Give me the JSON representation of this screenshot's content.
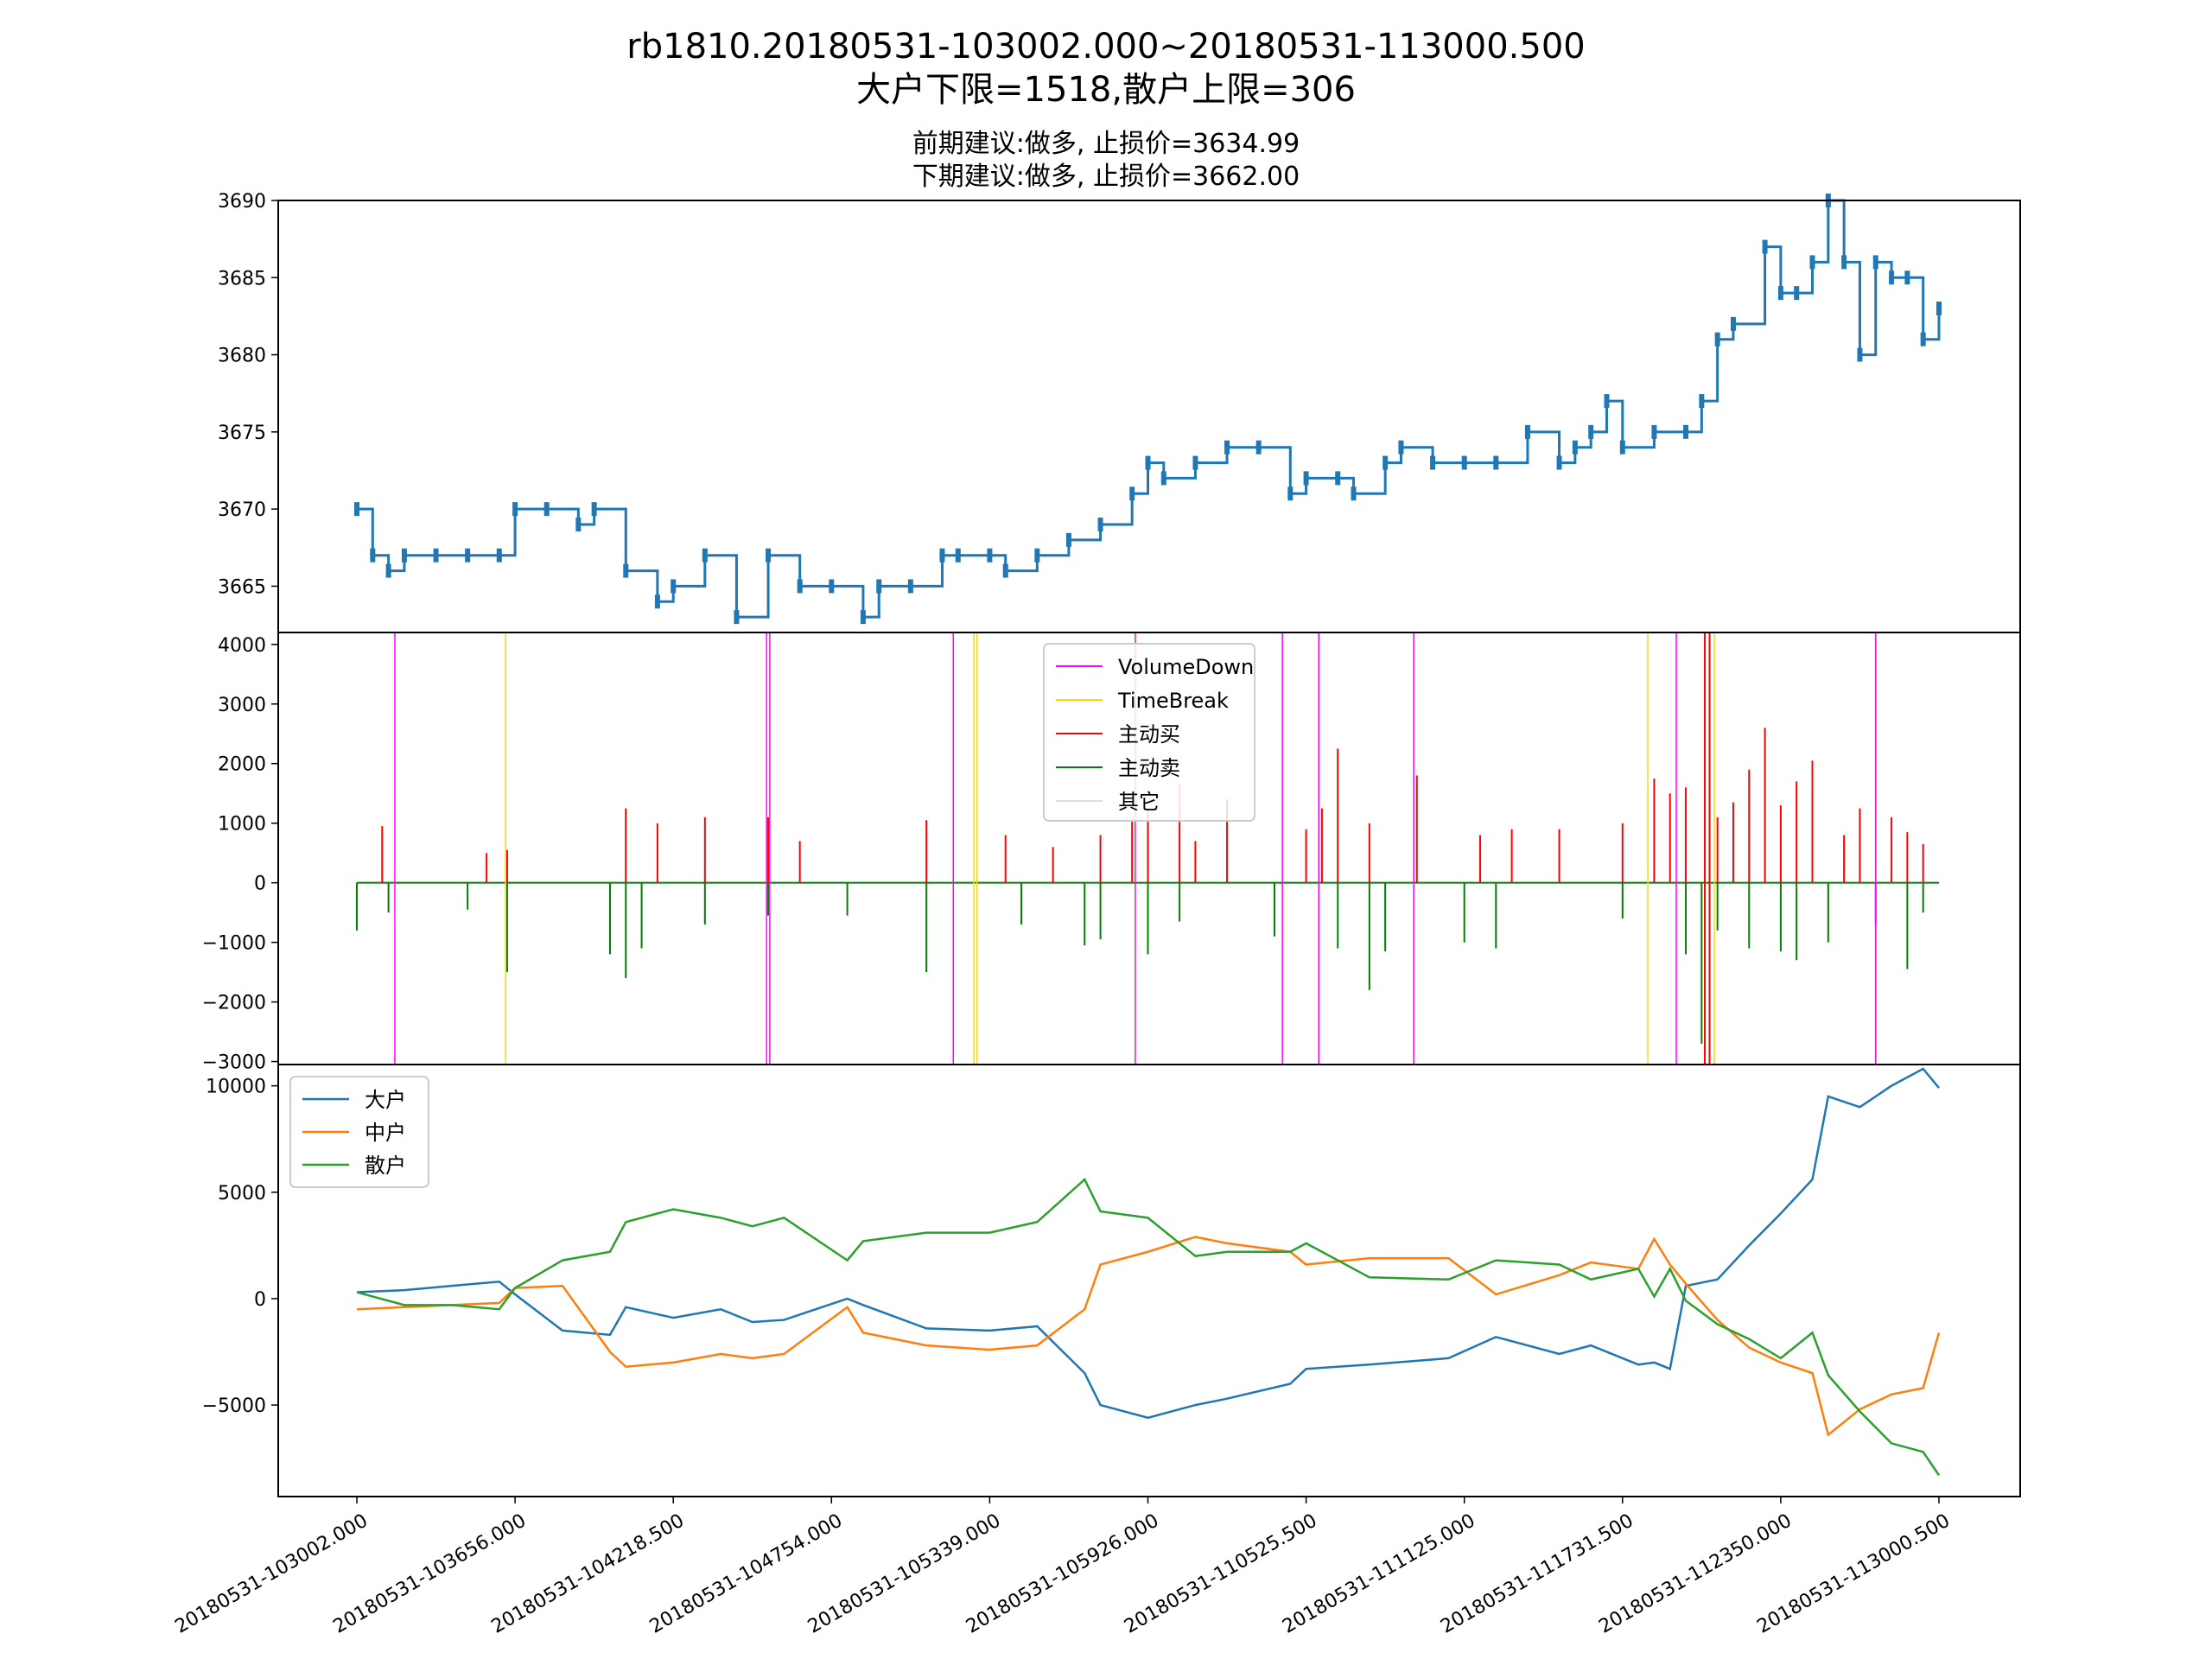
{
  "titles": {
    "main": "rb1810.20180531-103002.000~20180531-113000.500",
    "limits": "大户下限=1518,散户上限=306",
    "prev_advice": "前期建议:做多, 止损价=3634.99",
    "next_advice": "下期建议:做多, 止损价=3662.00"
  },
  "chart_data": [
    {
      "type": "line",
      "panel": "price",
      "title": "",
      "xlabel": "",
      "ylabel": "",
      "ylim": [
        3662,
        3690
      ],
      "yticks": [
        "3665",
        "3670",
        "3675",
        "3680",
        "3685",
        "3690"
      ],
      "ytick_values": [
        3665,
        3670,
        3675,
        3680,
        3685,
        3690
      ],
      "color": "#1f77b4",
      "series": [
        {
          "x": [
            0,
            0.01,
            0.02,
            0.03,
            0.05,
            0.07,
            0.09,
            0.1,
            0.12,
            0.14,
            0.15,
            0.17,
            0.19,
            0.2,
            0.22,
            0.24,
            0.26,
            0.28,
            0.3,
            0.32,
            0.33,
            0.35,
            0.37,
            0.38,
            0.4,
            0.41,
            0.43,
            0.45,
            0.47,
            0.49,
            0.5,
            0.51,
            0.53,
            0.55,
            0.57,
            0.59,
            0.6,
            0.62,
            0.63,
            0.65,
            0.66,
            0.68,
            0.7,
            0.72,
            0.74,
            0.76,
            0.77,
            0.78,
            0.79,
            0.8,
            0.82,
            0.84,
            0.85,
            0.86,
            0.87,
            0.89,
            0.9,
            0.91,
            0.92,
            0.93,
            0.94,
            0.95,
            0.96,
            0.97,
            0.98,
            0.99,
            1.0
          ],
          "y": [
            3670,
            3667,
            3666,
            3667,
            3667,
            3667,
            3667,
            3670,
            3670,
            3669,
            3670,
            3666,
            3664,
            3665,
            3667,
            3663,
            3667,
            3665,
            3665,
            3663,
            3665,
            3665,
            3667,
            3667,
            3667,
            3666,
            3667,
            3668,
            3669,
            3671,
            3673,
            3672,
            3673,
            3674,
            3674,
            3671,
            3672,
            3672,
            3671,
            3673,
            3674,
            3673,
            3673,
            3673,
            3675,
            3673,
            3674,
            3675,
            3677,
            3674,
            3675,
            3675,
            3677,
            3681,
            3682,
            3687,
            3684,
            3684,
            3686,
            3690,
            3686,
            3680,
            3686,
            3685,
            3685,
            3681,
            3683
          ]
        }
      ]
    },
    {
      "type": "bar",
      "panel": "volume",
      "title": "",
      "xlabel": "",
      "ylabel": "",
      "ylim": [
        -3050,
        4200
      ],
      "yticks": [
        "−3000",
        "−2000",
        "−1000",
        "0",
        "1000",
        "2000",
        "3000",
        "4000"
      ],
      "ytick_values": [
        -3000,
        -2000,
        -1000,
        0,
        1000,
        2000,
        3000,
        4000
      ],
      "legend": [
        "VolumeDown",
        "TimeBreak",
        "主动买",
        "主动卖",
        "其它"
      ],
      "legend_colors": [
        "#ff00ff",
        "#ffd700",
        "#ff0000",
        "#008000",
        "#dddddd"
      ],
      "legend_placement": "upper-center",
      "volume_down_x": [
        0.024,
        0.259,
        0.261,
        0.377,
        0.492,
        0.585,
        0.608,
        0.668,
        0.834,
        0.96
      ],
      "time_break_x": [
        0.094,
        0.39,
        0.392,
        0.816,
        0.858
      ],
      "large_buy_x": [
        0.852,
        0.855
      ],
      "large_buy_y": [
        4200,
        4200
      ],
      "buy_spikes_x": [
        0.016,
        0.082,
        0.095,
        0.17,
        0.19,
        0.22,
        0.26,
        0.28,
        0.36,
        0.41,
        0.44,
        0.47,
        0.49,
        0.5,
        0.52,
        0.53,
        0.55,
        0.6,
        0.61,
        0.62,
        0.64,
        0.67,
        0.71,
        0.73,
        0.76,
        0.8,
        0.82,
        0.83,
        0.84,
        0.86,
        0.87,
        0.88,
        0.89,
        0.9,
        0.91,
        0.92,
        0.94,
        0.95,
        0.97,
        0.98,
        0.99
      ],
      "buy_spikes_y": [
        950,
        500,
        550,
        1250,
        1000,
        1100,
        1100,
        700,
        1050,
        800,
        600,
        800,
        1050,
        1250,
        1650,
        700,
        1400,
        900,
        1250,
        2250,
        1000,
        1800,
        800,
        900,
        900,
        1000,
        1750,
        1500,
        1600,
        1100,
        1350,
        1900,
        2600,
        1300,
        1700,
        2050,
        800,
        1250,
        1100,
        850,
        650
      ],
      "sell_spikes_x": [
        0.0,
        0.02,
        0.07,
        0.095,
        0.16,
        0.17,
        0.18,
        0.22,
        0.26,
        0.31,
        0.36,
        0.42,
        0.46,
        0.47,
        0.5,
        0.52,
        0.58,
        0.62,
        0.64,
        0.65,
        0.7,
        0.72,
        0.8,
        0.84,
        0.85,
        0.86,
        0.88,
        0.9,
        0.91,
        0.93,
        0.96,
        0.98,
        0.99
      ],
      "sell_spikes_y": [
        -800,
        -500,
        -450,
        -1500,
        -1200,
        -1600,
        -1100,
        -700,
        -550,
        -550,
        -1500,
        -700,
        -1050,
        -950,
        -1200,
        -650,
        -900,
        -1100,
        -1800,
        -1150,
        -1000,
        -1100,
        -600,
        -1200,
        -2700,
        -800,
        -1100,
        -1150,
        -1300,
        -1000,
        -700,
        -1450,
        -500
      ]
    },
    {
      "type": "line",
      "panel": "positions",
      "title": "",
      "xlabel": "",
      "ylabel": "",
      "ylim": [
        -9300,
        11000
      ],
      "yticks": [
        "−5000",
        "0",
        "5000",
        "10000"
      ],
      "ytick_values": [
        -5000,
        0,
        5000,
        10000
      ],
      "legend_placement": "upper-left",
      "xticks": [
        "20180531-103002.000",
        "20180531-103656.000",
        "20180531-104218.500",
        "20180531-104754.000",
        "20180531-105339.000",
        "20180531-105926.000",
        "20180531-110525.500",
        "20180531-111125.000",
        "20180531-111731.500",
        "20180531-112350.000",
        "20180531-113000.500"
      ],
      "x": [
        0,
        0.03,
        0.06,
        0.09,
        0.1,
        0.13,
        0.16,
        0.17,
        0.2,
        0.23,
        0.25,
        0.27,
        0.31,
        0.32,
        0.36,
        0.4,
        0.43,
        0.46,
        0.47,
        0.5,
        0.53,
        0.55,
        0.59,
        0.6,
        0.64,
        0.69,
        0.72,
        0.76,
        0.78,
        0.81,
        0.82,
        0.83,
        0.84,
        0.86,
        0.88,
        0.9,
        0.92,
        0.93,
        0.95,
        0.97,
        0.99,
        1.0
      ],
      "series": [
        {
          "name": "大户",
          "color": "#1f77b4",
          "values": [
            300,
            400,
            600,
            800,
            200,
            -1500,
            -1700,
            -400,
            -900,
            -500,
            -1100,
            -1000,
            0,
            -300,
            -1400,
            -1500,
            -1300,
            -3500,
            -5000,
            -5600,
            -5000,
            -4700,
            -4000,
            -3300,
            -3100,
            -2800,
            -1800,
            -2600,
            -2200,
            -3100,
            -3000,
            -3300,
            600,
            900,
            2500,
            4000,
            5600,
            9500,
            9000,
            10000,
            10800,
            9900
          ]
        },
        {
          "name": "中户",
          "color": "#ff7f0e",
          "values": [
            -500,
            -400,
            -300,
            -200,
            500,
            600,
            -2500,
            -3200,
            -3000,
            -2600,
            -2800,
            -2600,
            -400,
            -1600,
            -2200,
            -2400,
            -2200,
            -500,
            1600,
            2200,
            2900,
            2600,
            2200,
            1600,
            1900,
            1900,
            200,
            1100,
            1700,
            1400,
            2800,
            1600,
            700,
            -1000,
            -2300,
            -3000,
            -3500,
            -6400,
            -5200,
            -4500,
            -4200,
            -1600
          ]
        },
        {
          "name": "散户",
          "color": "#2ca02c",
          "values": [
            300,
            -300,
            -300,
            -500,
            500,
            1800,
            2200,
            3600,
            4200,
            3800,
            3400,
            3800,
            1800,
            2700,
            3100,
            3100,
            3600,
            5600,
            4100,
            3800,
            2000,
            2200,
            2200,
            2600,
            1000,
            900,
            1800,
            1600,
            900,
            1400,
            100,
            1400,
            -100,
            -1200,
            -1900,
            -2800,
            -1600,
            -3600,
            -5300,
            -6800,
            -7200,
            -8300
          ]
        }
      ]
    }
  ]
}
